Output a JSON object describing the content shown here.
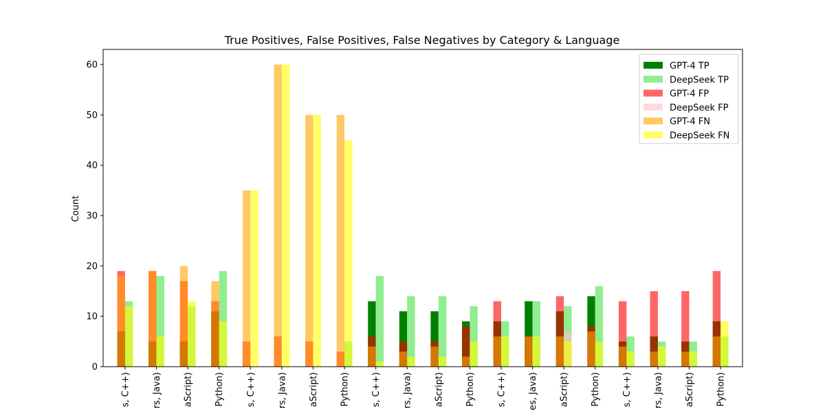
{
  "chart_data": {
    "type": "bar",
    "title": "True Positives, False Positives, False Negatives by Category & Language",
    "xlabel": "",
    "ylabel": "Count",
    "ylim": [
      0,
      63
    ],
    "yticks": [
      0,
      10,
      20,
      30,
      40,
      50,
      60
    ],
    "categories": [
      "s, C++)",
      "rs, Java)",
      "aScript)",
      "Python)",
      "s, C++)",
      "rs, Java)",
      "aScript)",
      "Python)",
      "s, C++)",
      "rs, Java)",
      "aScript)",
      "Python)",
      "s, C++)",
      "es, Java)",
      "aScript)",
      "Python)",
      "s, C++)",
      "rs, Java)",
      "aScript)",
      "Python)"
    ],
    "legend_position": "top-right",
    "grid": false,
    "series": [
      {
        "name": "GPT-4 TP",
        "model": "GPT-4",
        "color": "#008000",
        "opacity": 1.0,
        "values": [
          7,
          5,
          5,
          11,
          0,
          0,
          0,
          0,
          13,
          11,
          11,
          9,
          9,
          13,
          11,
          14,
          5,
          6,
          5,
          9
        ]
      },
      {
        "name": "DeepSeek TP",
        "model": "DeepSeek",
        "color": "#90ee90",
        "opacity": 1.0,
        "values": [
          13,
          18,
          12,
          19,
          0,
          0,
          0,
          5,
          18,
          14,
          14,
          12,
          9,
          13,
          12,
          16,
          6,
          5,
          5,
          6
        ]
      },
      {
        "name": "GPT-4 FP",
        "model": "GPT-4",
        "color": "#ff0000",
        "opacity": 0.6,
        "values": [
          19,
          19,
          17,
          13,
          5,
          6,
          5,
          3,
          6,
          5,
          5,
          8,
          13,
          6,
          14,
          8,
          13,
          15,
          15,
          19
        ]
      },
      {
        "name": "DeepSeek FP",
        "model": "DeepSeek",
        "color": "#ffc0cb",
        "opacity": 0.6,
        "values": [
          0,
          0,
          0,
          0,
          0,
          0,
          0,
          0,
          0,
          0,
          0,
          0,
          0,
          0,
          7,
          0,
          0,
          0,
          0,
          0
        ]
      },
      {
        "name": "GPT-4 FN",
        "model": "GPT-4",
        "color": "#ffa500",
        "opacity": 0.6,
        "values": [
          18,
          19,
          20,
          17,
          35,
          60,
          50,
          50,
          4,
          3,
          4,
          2,
          6,
          6,
          6,
          7,
          4,
          3,
          3,
          6
        ]
      },
      {
        "name": "DeepSeek FN",
        "model": "DeepSeek",
        "color": "#ffff00",
        "opacity": 0.6,
        "values": [
          12,
          6,
          13,
          9,
          35,
          60,
          50,
          45,
          1,
          2,
          2,
          5,
          6,
          6,
          5,
          5,
          3,
          4,
          3,
          9
        ]
      }
    ]
  }
}
